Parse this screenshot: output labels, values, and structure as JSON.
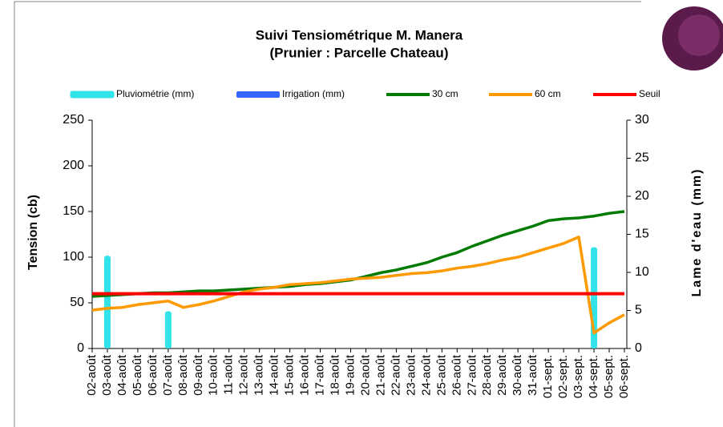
{
  "chart_data": {
    "type": "bar-line",
    "title": "Suivi Tensiométrique M. Manera",
    "subtitle": "(Prunier : Parcelle Chateau)",
    "y_label": "Tension (cb)",
    "y2_label": "Lame d'eau (mm)",
    "categories": [
      "02-août",
      "03-août",
      "04-août",
      "05-août",
      "06-août",
      "07-août",
      "08-août",
      "09-août",
      "10-août",
      "11-août",
      "12-août",
      "13-août",
      "14-août",
      "15-août",
      "16-août",
      "17-août",
      "18-août",
      "19-août",
      "20-août",
      "21-août",
      "22-août",
      "23-août",
      "24-août",
      "25-août",
      "26-août",
      "27-août",
      "28-août",
      "29-août",
      "30-août",
      "31-août",
      "01-sept.",
      "02-sept.",
      "03-sept.",
      "04-sept.",
      "05-sept.",
      "06-sept."
    ],
    "ylim": [
      0,
      250
    ],
    "yticks": [
      0,
      50,
      100,
      150,
      200,
      250
    ],
    "y2lim": [
      0,
      30
    ],
    "y2ticks": [
      0,
      5,
      10,
      15,
      20,
      25,
      30
    ],
    "grid": false,
    "series": [
      {
        "name": "Pluviométrie (mm)",
        "type": "bar",
        "axis": "y2",
        "color": "#33e3ea",
        "values": [
          0,
          12.2,
          0,
          0,
          0,
          4.9,
          0,
          0,
          0,
          0,
          0,
          0,
          0,
          0,
          0,
          0,
          0,
          0,
          0,
          0,
          0,
          0,
          0,
          0,
          0,
          0,
          0,
          0,
          0,
          0,
          0,
          0,
          0,
          13.3,
          0,
          0
        ]
      },
      {
        "name": "Irrigation (mm)",
        "type": "bar",
        "axis": "y2",
        "color": "#3366ff",
        "values": [
          0,
          0,
          0,
          0,
          0,
          0,
          0,
          0,
          0,
          0,
          0,
          0,
          0,
          0,
          0,
          0,
          0,
          0,
          0,
          0,
          0,
          0,
          0,
          0,
          0,
          0,
          0,
          0,
          0,
          0,
          0,
          0,
          0,
          0,
          0,
          0
        ]
      },
      {
        "name": "30 cm",
        "type": "line",
        "color": "#007a00",
        "values": [
          57,
          58,
          59,
          60,
          61,
          61,
          62,
          63,
          63,
          64,
          65,
          66,
          67,
          68,
          70,
          71,
          73,
          75,
          79,
          83,
          86,
          90,
          94,
          100,
          105,
          112,
          118,
          124,
          129,
          134,
          140,
          142,
          143,
          145,
          148,
          150
        ]
      },
      {
        "name": "60 cm",
        "type": "line",
        "color": "#ff9900",
        "values": [
          42,
          44,
          45,
          48,
          50,
          52,
          45,
          48,
          52,
          57,
          62,
          65,
          67,
          70,
          71,
          72,
          74,
          76,
          77,
          78,
          80,
          82,
          83,
          85,
          88,
          90,
          93,
          97,
          100,
          105,
          110,
          115,
          122,
          17,
          28,
          37
        ]
      },
      {
        "name": "Seuil",
        "type": "line",
        "color": "#ff0000",
        "values": [
          60,
          60,
          60,
          60,
          60,
          60,
          60,
          60,
          60,
          60,
          60,
          60,
          60,
          60,
          60,
          60,
          60,
          60,
          60,
          60,
          60,
          60,
          60,
          60,
          60,
          60,
          60,
          60,
          60,
          60,
          60,
          60,
          60,
          60,
          60,
          60
        ]
      }
    ]
  }
}
